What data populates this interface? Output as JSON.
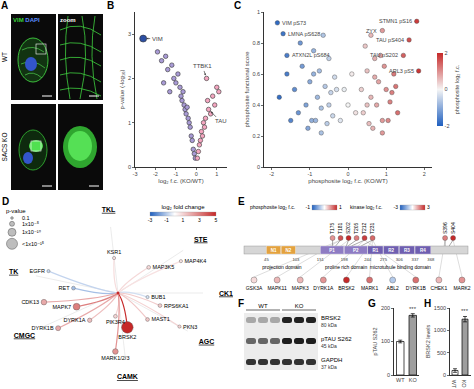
{
  "chart_data": [
    {
      "panel": "B",
      "type": "scatter",
      "x_label": "log₂ f.c. (KO/WT)",
      "y_label": "p-value (-log₁₀)",
      "series": [
        {
          "color": "#a99bd6",
          "x": [
            -1.9,
            -1.7,
            -1.5,
            -1.4,
            -1.2,
            -1.1,
            -1.0,
            -0.9,
            -0.8,
            -0.75,
            -0.7,
            -0.65,
            -0.6,
            -0.55,
            -0.5,
            -0.45,
            -0.4,
            -1.3,
            -1.6,
            -0.35,
            -0.3,
            -0.25,
            -0.2,
            -0.15,
            -0.1,
            -0.05
          ],
          "values": [
            2.6,
            2.4,
            2.5,
            2.2,
            2.3,
            2.0,
            1.9,
            2.1,
            1.8,
            1.6,
            1.5,
            1.7,
            1.4,
            1.3,
            1.2,
            1.35,
            1.1,
            1.7,
            1.9,
            1.0,
            0.9,
            0.7,
            0.6,
            0.4,
            0.3,
            0.2
          ]
        },
        {
          "color": "#f4a6c0",
          "x": [
            0.05,
            0.1,
            0.15,
            0.2,
            0.25,
            0.3,
            0.35,
            0.4,
            0.45,
            0.5,
            0.6,
            0.55,
            0.7,
            0.8,
            0.9,
            1.0,
            1.1
          ],
          "values": [
            0.2,
            0.35,
            0.5,
            0.6,
            0.8,
            0.7,
            1.0,
            0.9,
            1.1,
            2.0,
            1.3,
            1.5,
            1.2,
            1.6,
            1.4,
            1.8,
            1.7
          ]
        },
        {
          "color": "#2c4fa3",
          "x": [
            -2.6
          ],
          "values": [
            2.9
          ]
        }
      ],
      "xlim": [
        -3,
        1.5
      ],
      "xticks": [
        -3,
        -2,
        -1,
        0,
        1
      ],
      "ylim": [
        0,
        3.5
      ],
      "yticks": [
        0,
        1,
        2,
        3
      ],
      "annotations": [
        {
          "text": "VIM",
          "x": -2.6,
          "y": 2.9
        },
        {
          "text": "TTBK1",
          "x": 0.5,
          "y": 2.0
        },
        {
          "text": "TAU",
          "x": 0.6,
          "y": 1.3
        }
      ]
    },
    {
      "panel": "C",
      "type": "scatter",
      "x_label": "phosphosite log₂ f.c. (KO/WT)",
      "y_label": "phosphosite functional score",
      "x": [
        -1.85,
        -1.7,
        -1.6,
        1.8,
        0.9,
        1.6,
        1.45,
        1.85,
        -1.8,
        -1.6,
        -1.4,
        -1.3,
        -1.2,
        -1.1,
        -1.0,
        -0.95,
        -0.9,
        -0.8,
        -0.75,
        -0.7,
        -0.6,
        -0.55,
        -0.5,
        -0.45,
        -0.4,
        -0.35,
        -1.25,
        -1.05,
        -0.85,
        -0.65,
        -0.5,
        -0.3,
        -1.5,
        -0.9,
        -0.7,
        -0.2,
        -0.1,
        0,
        0.1,
        0.2,
        0.35,
        0.4,
        0.5,
        0.55,
        0.6,
        0.7,
        0.75,
        0.8,
        0.9,
        0.95,
        1.0,
        1.1,
        1.2,
        1.3,
        0.45,
        0.65,
        0.85,
        1.05,
        1.15,
        0.5,
        0.7,
        1.25,
        0.6,
        0.9
      ],
      "values": [
        0.93,
        0.86,
        0.72,
        0.94,
        0.88,
        0.82,
        0.72,
        0.62,
        0.45,
        0.6,
        0.5,
        0.35,
        0.65,
        0.4,
        0.55,
        0.3,
        0.75,
        0.45,
        0.62,
        0.38,
        0.52,
        0.28,
        0.7,
        0.48,
        0.33,
        0.58,
        0.8,
        0.25,
        0.3,
        0.85,
        0.4,
        0.5,
        0.3,
        0.6,
        0.22,
        0.3,
        0.5,
        0.4,
        0.6,
        0.35,
        0.5,
        0.35,
        0.62,
        0.28,
        0.45,
        0.7,
        0.4,
        0.55,
        0.3,
        0.65,
        0.5,
        0.42,
        0.6,
        0.35,
        0.78,
        0.25,
        0.72,
        0.3,
        0.48,
        0.4,
        0.58,
        0.52,
        0.85,
        0.22
      ],
      "colorbar": {
        "title": "phosphosite log₂ f.c.",
        "range": [
          -2,
          2
        ],
        "ticks": [
          -2,
          0,
          2
        ]
      },
      "xlim": [
        -2.2,
        2.2
      ],
      "xticks": [
        -2,
        -1,
        0,
        1,
        2
      ],
      "ylim": [
        0,
        1
      ],
      "yticks": [
        0,
        0.2,
        0.4,
        0.6,
        0.8,
        1
      ],
      "annotations": [
        {
          "text": "VIM pS73",
          "x": -1.85,
          "y": 0.93
        },
        {
          "text": "LMNA pS628",
          "x": -1.7,
          "y": 0.86
        },
        {
          "text": "ATXN2L pS684",
          "x": -1.6,
          "y": 0.72
        },
        {
          "text": "STMN1 pS16",
          "x": 1.8,
          "y": 0.94
        },
        {
          "text": "ZYX",
          "x": 0.9,
          "y": 0.88
        },
        {
          "text": "TAU pS404",
          "x": 1.6,
          "y": 0.82
        },
        {
          "text": "TAU pS202",
          "x": 1.45,
          "y": 0.72
        },
        {
          "text": "ARL3 pS5",
          "x": 1.85,
          "y": 0.62
        }
      ]
    },
    {
      "panel": "G",
      "type": "bar",
      "categories": [
        "WT",
        "KO"
      ],
      "values": [
        100,
        178
      ],
      "errors": [
        4,
        5
      ],
      "colors": [
        "#ffffff",
        "#9e9e9e"
      ],
      "y_label": "pTAU S262",
      "ylim": [
        0,
        200
      ],
      "yticks": [
        0,
        100,
        200
      ],
      "annotations": [
        {
          "text": "***",
          "category": "KO"
        }
      ]
    },
    {
      "panel": "H",
      "type": "bar",
      "categories": [
        "WT",
        "KO"
      ],
      "values": [
        100,
        1250
      ],
      "errors": [
        40,
        60
      ],
      "colors": [
        "#ffffff",
        "#9e9e9e"
      ],
      "y_label": "BRSK2 levels",
      "ylim": [
        0,
        1500
      ],
      "yticks": [
        0,
        500,
        1000,
        1500
      ],
      "annotations": [
        {
          "text": "***",
          "category": "KO"
        }
      ]
    }
  ],
  "panels": {
    "A": {
      "panel": "A",
      "rows": [
        "WT",
        "SACS KO"
      ],
      "columns": [
        {
          "parts": [
            {
              "text": "VIM",
              "color": "#39d639"
            },
            {
              "text": "DAPI",
              "color": "#5b8cff"
            }
          ]
        },
        {
          "parts": [
            {
              "text": "zoom",
              "color": "#ffffff"
            }
          ]
        }
      ]
    },
    "D": {
      "panel": "D",
      "size_legend": {
        "title": "p-value",
        "values": [
          {
            "value": 0.1,
            "label": "0.1"
          },
          {
            "value": 1e-05,
            "label": "1x10⁻⁵"
          },
          {
            "value": 1e-10,
            "label": "1x10⁻¹⁰"
          },
          {
            "value": 1e-15,
            "label": "<1x10⁻¹⁵"
          }
        ]
      },
      "color_legend": {
        "title": "log₂ fold change",
        "range": [
          -3,
          5
        ],
        "ticks": [
          -3,
          -1,
          1,
          3,
          5
        ]
      },
      "groups": [
        "TK",
        "TKL",
        "STE",
        "CK1",
        "AGC",
        "CAMK",
        "CMGC"
      ],
      "kinases": [
        {
          "name": "RET",
          "group": "TK",
          "fc": -1.2,
          "p": 0.001
        },
        {
          "name": "EGFR",
          "group": "TK",
          "fc": -0.8,
          "p": 0.01
        },
        {
          "name": "KSR1",
          "group": "TKL",
          "fc": 0.8,
          "p": 0.01
        },
        {
          "name": "MAP3K5",
          "group": "STE",
          "fc": 0.9,
          "p": 0.001
        },
        {
          "name": "MAP4K4",
          "group": "STE",
          "fc": 0.7,
          "p": 0.01
        },
        {
          "name": "BUB1",
          "group": null,
          "fc": -0.6,
          "p": 0.01
        },
        {
          "name": "PIK3R4",
          "group": null,
          "fc": 1,
          "p": 0.001
        },
        {
          "name": "RPS6KA1",
          "group": "AGC",
          "fc": 1.2,
          "p": 0.001
        },
        {
          "name": "PKN3",
          "group": "AGC",
          "fc": 1,
          "p": 0.01
        },
        {
          "name": "MAST1",
          "group": "AGC",
          "fc": 1.3,
          "p": 0.001
        },
        {
          "name": "BRSK2",
          "group": "CAMK",
          "fc": 5,
          "p": 1e-16
        },
        {
          "name": "MARK1/2/3",
          "group": "CAMK",
          "fc": 2.5,
          "p": 1e-06
        },
        {
          "name": "DYRK1A",
          "group": "CMGC",
          "fc": 1.5,
          "p": 0.0001
        },
        {
          "name": "DYRK1B",
          "group": "CMGC",
          "fc": 2,
          "p": 1e-05
        },
        {
          "name": "MAPK7",
          "group": "CMGC",
          "fc": 3,
          "p": 1e-08
        },
        {
          "name": "CDK13",
          "group": "CMGC",
          "fc": 2,
          "p": 1e-06
        }
      ]
    },
    "E": {
      "panel": "E",
      "legend": [
        {
          "title": "phosphosite log₂ f.c.",
          "range": [
            -1,
            1
          ]
        },
        {
          "title": "kinase log₂ f.c.",
          "range": [
            -3,
            3
          ]
        }
      ],
      "length": 441,
      "domains": [
        {
          "name": "N1",
          "start": 45,
          "end": 73,
          "color": "#e3a23f"
        },
        {
          "name": "N2",
          "start": 74,
          "end": 102,
          "color": "#e3a23f"
        },
        {
          "name": "P1",
          "start": 151,
          "end": 197,
          "color": "#8e7cc3"
        },
        {
          "name": "P2",
          "start": 198,
          "end": 243,
          "color": "#8e7cc3"
        },
        {
          "name": "R1",
          "start": 244,
          "end": 274,
          "color": "#6f5fb0"
        },
        {
          "name": "R2",
          "start": 275,
          "end": 305,
          "color": "#6f5fb0"
        },
        {
          "name": "R3",
          "start": 306,
          "end": 336,
          "color": "#6f5fb0"
        },
        {
          "name": "R4",
          "start": 337,
          "end": 368,
          "color": "#6f5fb0"
        }
      ],
      "regions": [
        {
          "name": "projection domain",
          "start": 1,
          "end": 150
        },
        {
          "name": "proline rich domain",
          "start": 151,
          "end": 243
        },
        {
          "name": "microtubule binding domain",
          "start": 244,
          "end": 368
        }
      ],
      "ticks": [
        45,
        103,
        151,
        198,
        244,
        275,
        306,
        337,
        368
      ],
      "sites": [
        {
          "name": "T175",
          "residue": 175,
          "fc": 0.5
        },
        {
          "name": "T181",
          "residue": 181,
          "fc": 0.8
        },
        {
          "name": "S202",
          "residue": 202,
          "fc": 1.0
        },
        {
          "name": "T205",
          "residue": 205,
          "fc": 0.6
        },
        {
          "name": "T212",
          "residue": 212,
          "fc": 0.9
        },
        {
          "name": "T231",
          "residue": 231,
          "fc": 0.7
        },
        {
          "name": "S396",
          "residue": 396,
          "fc": 0.6
        },
        {
          "name": "S404",
          "residue": 404,
          "fc": 1.0
        }
      ],
      "kinases": [
        {
          "name": "GSK3A",
          "fc": 0.5,
          "site": "T181"
        },
        {
          "name": "MAPK11",
          "fc": 1,
          "site": "T181"
        },
        {
          "name": "MAPK3",
          "fc": 1,
          "site": "S202"
        },
        {
          "name": "DYRK1A",
          "fc": 1.5,
          "site": "T212"
        },
        {
          "name": "BRSK2",
          "fc": 3,
          "site": "T231"
        },
        {
          "name": "MARK1",
          "fc": 2,
          "site": "T231"
        },
        {
          "name": "ABL2",
          "fc": -1,
          "site": "T231"
        },
        {
          "name": "DYRK1B",
          "fc": 2,
          "site": "T212"
        },
        {
          "name": "CHEK1",
          "fc": 1,
          "site": "S396"
        },
        {
          "name": "MARK2",
          "fc": 1.5,
          "site": "S404"
        }
      ]
    },
    "F": {
      "panel": "F",
      "lanes": [
        "WT",
        "KO"
      ],
      "rows": [
        {
          "name": "BRSK2",
          "size": "80 kDa"
        },
        {
          "name": "pTAU S262",
          "size": "45 kDa"
        },
        {
          "name": "GAPDH",
          "size": "37 kDa"
        }
      ]
    }
  }
}
